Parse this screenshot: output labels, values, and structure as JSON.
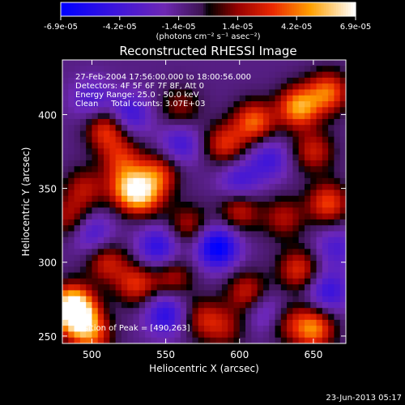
{
  "chart_data": {
    "type": "heatmap",
    "title": "Reconstructed RHESSI Image",
    "xlabel": "Heliocentric X (arcsec)",
    "ylabel": "Heliocentric Y (arcsec)",
    "xlim": [
      480,
      672
    ],
    "ylim": [
      245,
      437
    ],
    "x_ticks": [
      500,
      550,
      600,
      650
    ],
    "y_ticks": [
      250,
      300,
      350,
      400
    ],
    "colorbar": {
      "ticks": [
        "-6.9e-05",
        "-4.2e-05",
        "-1.4e-05",
        "1.4e-05",
        "4.2e-05",
        "6.9e-05"
      ],
      "unit_label": "(photons cm⁻² s⁻¹ asec⁻²)",
      "range": [
        -6.9e-05,
        6.9e-05
      ]
    },
    "annotations": [
      "27-Feb-2004 17:56:00.000 to 18:00:56.000",
      "Detectors: 4F 5F 6F 7F 8F, Att 0",
      "Energy Range: 25.0 - 50.0 keV",
      "Clean     Total counts: 3.07E+03"
    ],
    "peak_label": "Position of Peak = [490,263]",
    "peak_position": [
      490,
      263
    ],
    "blobs": [
      {
        "x": 490,
        "y": 263,
        "v": 6.9e-05
      },
      {
        "x": 486,
        "y": 272,
        "v": 5.5e-05
      },
      {
        "x": 500,
        "y": 250,
        "v": 4e-05
      },
      {
        "x": 510,
        "y": 390,
        "v": 4.5e-05
      },
      {
        "x": 520,
        "y": 370,
        "v": 3.5e-05
      },
      {
        "x": 495,
        "y": 350,
        "v": 3e-05
      },
      {
        "x": 525,
        "y": 350,
        "v": 5e-05
      },
      {
        "x": 535,
        "y": 345,
        "v": 4.5e-05
      },
      {
        "x": 545,
        "y": 360,
        "v": 4e-05
      },
      {
        "x": 590,
        "y": 380,
        "v": 4e-05
      },
      {
        "x": 610,
        "y": 395,
        "v": 5e-05
      },
      {
        "x": 640,
        "y": 405,
        "v": 6e-05
      },
      {
        "x": 660,
        "y": 415,
        "v": 5e-05
      },
      {
        "x": 650,
        "y": 375,
        "v": 3.5e-05
      },
      {
        "x": 660,
        "y": 340,
        "v": 4.5e-05
      },
      {
        "x": 630,
        "y": 330,
        "v": 3e-05
      },
      {
        "x": 600,
        "y": 335,
        "v": 3.5e-05
      },
      {
        "x": 565,
        "y": 325,
        "v": 3e-05
      },
      {
        "x": 510,
        "y": 300,
        "v": 3.5e-05
      },
      {
        "x": 530,
        "y": 285,
        "v": 4e-05
      },
      {
        "x": 555,
        "y": 290,
        "v": 3e-05
      },
      {
        "x": 605,
        "y": 280,
        "v": 3.5e-05
      },
      {
        "x": 640,
        "y": 295,
        "v": 4e-05
      },
      {
        "x": 575,
        "y": 262,
        "v": 3e-05
      },
      {
        "x": 590,
        "y": 255,
        "v": 2.5e-05
      },
      {
        "x": 650,
        "y": 255,
        "v": 5.5e-05
      },
      {
        "x": 630,
        "y": 260,
        "v": 3e-05
      },
      {
        "x": 485,
        "y": 330,
        "v": 3e-05
      },
      {
        "x": 560,
        "y": 405,
        "v": 2.5e-05
      },
      {
        "x": 585,
        "y": 310,
        "v": -6e-05
      },
      {
        "x": 525,
        "y": 400,
        "v": -3.5e-05
      },
      {
        "x": 600,
        "y": 355,
        "v": -3e-05
      },
      {
        "x": 545,
        "y": 310,
        "v": -4e-05
      },
      {
        "x": 550,
        "y": 265,
        "v": -4e-05
      },
      {
        "x": 620,
        "y": 265,
        "v": -3e-05
      },
      {
        "x": 660,
        "y": 280,
        "v": -3.5e-05
      },
      {
        "x": 500,
        "y": 320,
        "v": -3e-05
      },
      {
        "x": 620,
        "y": 370,
        "v": -3e-05
      },
      {
        "x": 560,
        "y": 380,
        "v": -3e-05
      },
      {
        "x": 500,
        "y": 410,
        "v": -2.5e-05
      },
      {
        "x": 665,
        "y": 310,
        "v": -2.5e-05
      }
    ]
  },
  "footer_date": "23-Jun-2013 05:17"
}
